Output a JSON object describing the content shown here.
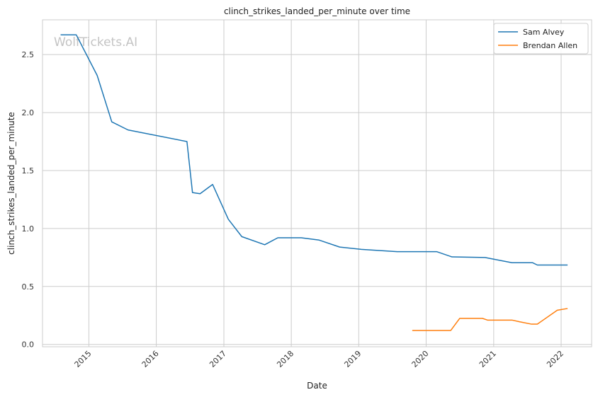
{
  "chart_data": {
    "type": "line",
    "title": "clinch_strikes_landed_per_minute over time",
    "xlabel": "Date",
    "ylabel": "clinch_strikes_landed_per_minute",
    "watermark": "WolfTickets.AI",
    "x_ticks": [
      "2015",
      "2016",
      "2017",
      "2018",
      "2019",
      "2020",
      "2021",
      "2022"
    ],
    "y_ticks": [
      "0.0",
      "0.5",
      "1.0",
      "1.5",
      "2.0",
      "2.5"
    ],
    "xlim": [
      "2014-04-25",
      "2022-06-15"
    ],
    "ylim": [
      -0.02,
      2.8
    ],
    "grid": true,
    "legend_position": "top-right",
    "series": [
      {
        "name": "Sam Alvey",
        "color": "#1f77b4",
        "points": [
          [
            "2014-08-01",
            2.67
          ],
          [
            "2014-10-25",
            2.67
          ],
          [
            "2015-02-15",
            2.32
          ],
          [
            "2015-05-05",
            1.92
          ],
          [
            "2015-08-01",
            1.85
          ],
          [
            "2016-06-15",
            1.75
          ],
          [
            "2016-07-15",
            1.31
          ],
          [
            "2016-08-25",
            1.3
          ],
          [
            "2016-11-01",
            1.38
          ],
          [
            "2017-01-25",
            1.08
          ],
          [
            "2017-04-08",
            0.93
          ],
          [
            "2017-08-10",
            0.86
          ],
          [
            "2017-10-20",
            0.92
          ],
          [
            "2018-02-24",
            0.92
          ],
          [
            "2018-06-01",
            0.9
          ],
          [
            "2018-09-20",
            0.84
          ],
          [
            "2019-01-15",
            0.82
          ],
          [
            "2019-07-28",
            0.8
          ],
          [
            "2020-02-28",
            0.8
          ],
          [
            "2020-05-20",
            0.755
          ],
          [
            "2020-11-15",
            0.75
          ],
          [
            "2021-04-10",
            0.705
          ],
          [
            "2021-07-30",
            0.705
          ],
          [
            "2021-08-25",
            0.685
          ],
          [
            "2022-02-05",
            0.685
          ]
        ]
      },
      {
        "name": "Brendan Allen",
        "color": "#ff7f0e",
        "points": [
          [
            "2019-10-18",
            0.12
          ],
          [
            "2020-05-13",
            0.12
          ],
          [
            "2020-07-01",
            0.225
          ],
          [
            "2020-11-01",
            0.225
          ],
          [
            "2020-11-28",
            0.21
          ],
          [
            "2021-04-10",
            0.21
          ],
          [
            "2021-05-22",
            0.195
          ],
          [
            "2021-07-25",
            0.175
          ],
          [
            "2021-08-25",
            0.175
          ],
          [
            "2021-12-11",
            0.295
          ],
          [
            "2022-02-05",
            0.31
          ]
        ]
      }
    ]
  }
}
